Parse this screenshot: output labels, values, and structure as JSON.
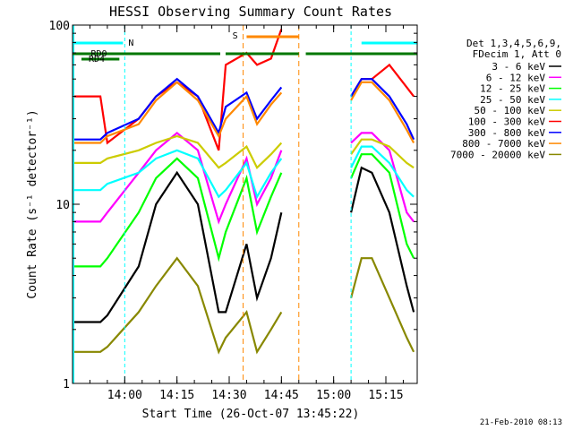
{
  "chart_data": {
    "type": "line",
    "title": "HESSI Observing Summary Count Rates",
    "xlabel": "Start Time (26-Oct-07 13:45:22)",
    "ylabel": "Count Rate (s⁻¹ detector⁻¹)",
    "y_scale": "log",
    "ylim": [
      1,
      100
    ],
    "xlim": [
      "13:45",
      "15:24"
    ],
    "x_ticks": [
      "14:00",
      "14:15",
      "14:30",
      "14:45",
      "15:00",
      "15:15"
    ],
    "y_ticks": [
      "1",
      "10",
      "100"
    ],
    "legend_title": [
      "Det 1,3,4,5,6,9,",
      "FDecim 1, Att 0"
    ],
    "legend_position": "right",
    "footer_date": "21-Feb-2010 08:13",
    "flag_labels": {
      "saa": "N",
      "rd0": "RD0",
      "rd4": "RD4",
      "flare": "S"
    },
    "colors": {
      "band_3_6": "#000000",
      "band_6_12": "#ff00ff",
      "band_12_25": "#00ff00",
      "band_25_50": "#00ffff",
      "band_50_100": "#cccc00",
      "band_100_300": "#ff0000",
      "band_300_800": "#0000ff",
      "band_800_7000": "#ff8800",
      "band_7000_20000": "#888800",
      "flag_cyan": "#00ffff",
      "flag_green": "#007700",
      "flag_orange": "#ff8800"
    },
    "x": [
      "13:45",
      "13:53",
      "13:55",
      "14:04",
      "14:09",
      "14:15",
      "14:21",
      "14:27",
      "14:29",
      "14:35",
      "14:38",
      "14:42",
      "14:45",
      "15:05",
      "15:08",
      "15:11",
      "15:16",
      "15:21",
      "15:23"
    ],
    "series": [
      {
        "name": "3 - 6 keV",
        "color": "#000000",
        "values": [
          2.2,
          2.2,
          2.4,
          4.5,
          10,
          15,
          10,
          2.5,
          2.5,
          6,
          3,
          5,
          9,
          9,
          16,
          15,
          9,
          3.5,
          2.5
        ]
      },
      {
        "name": "6 - 12 keV",
        "color": "#ff00ff",
        "values": [
          8,
          8,
          9,
          15,
          20,
          25,
          20,
          8,
          10,
          18,
          10,
          14,
          20,
          22,
          25,
          25,
          20,
          9,
          8
        ]
      },
      {
        "name": "12 - 25 keV",
        "color": "#00ff00",
        "values": [
          4.5,
          4.5,
          5,
          9,
          14,
          18,
          14,
          5,
          7,
          14,
          7,
          11,
          15,
          14,
          19,
          19,
          15,
          6,
          5
        ]
      },
      {
        "name": "25 - 50 keV",
        "color": "#00ffff",
        "values": [
          12,
          12,
          13,
          15,
          18,
          20,
          18,
          11,
          12,
          17,
          11,
          15,
          18,
          16,
          21,
          21,
          17,
          12,
          11
        ]
      },
      {
        "name": "50 - 100 keV",
        "color": "#cccc00",
        "values": [
          17,
          17,
          18,
          20,
          22,
          24,
          22,
          16,
          17,
          21,
          16,
          19,
          22,
          19,
          23,
          23,
          21,
          17,
          16
        ]
      },
      {
        "name": "100 - 300 keV",
        "color": "#ff0000",
        "values": [
          40,
          40,
          22,
          30,
          40,
          48,
          40,
          20,
          60,
          70,
          60,
          65,
          95,
          40,
          50,
          50,
          60,
          45,
          40
        ]
      },
      {
        "name": "300 - 800 keV",
        "color": "#0000ff",
        "values": [
          23,
          23,
          25,
          30,
          40,
          50,
          40,
          25,
          35,
          42,
          30,
          38,
          45,
          40,
          50,
          50,
          40,
          28,
          23
        ]
      },
      {
        "name": "800 - 7000 keV",
        "color": "#ff8800",
        "values": [
          22,
          22,
          24,
          28,
          38,
          48,
          38,
          24,
          30,
          40,
          28,
          36,
          42,
          38,
          48,
          48,
          38,
          26,
          22
        ]
      },
      {
        "name": "7000 - 20000 keV",
        "color": "#888800",
        "values": [
          1.5,
          1.5,
          1.6,
          2.5,
          3.5,
          5,
          3.5,
          1.5,
          1.8,
          2.5,
          1.5,
          2,
          2.5,
          3,
          5,
          5,
          3,
          1.8,
          1.5
        ]
      }
    ]
  }
}
